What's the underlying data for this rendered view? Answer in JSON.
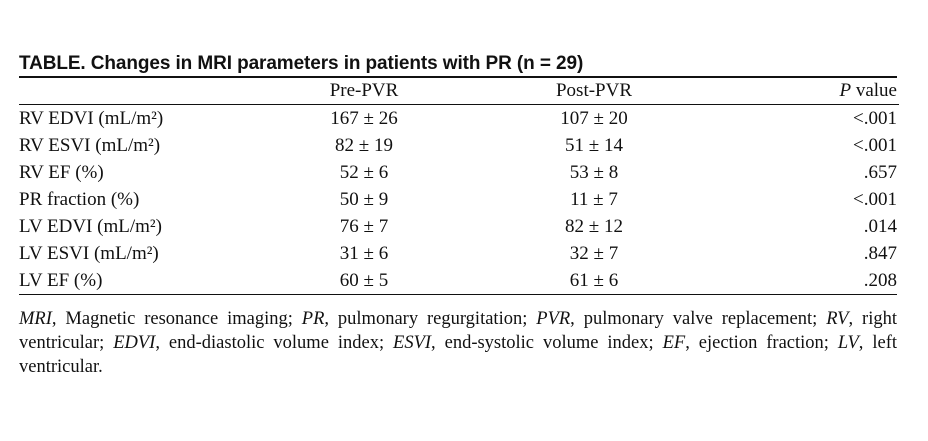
{
  "table": {
    "caption": "TABLE. Changes in MRI parameters in patients with PR (n = 29)",
    "headers": {
      "parameter": "",
      "pre": "Pre-PVR",
      "post": "Post-PVR",
      "p_italic": "P",
      "p_rest": " value"
    },
    "rows": [
      {
        "parameter": "RV EDVI (mL/m²)",
        "pre": "167 ± 26",
        "post": "107 ± 20",
        "p": "<.001"
      },
      {
        "parameter": "RV ESVI (mL/m²)",
        "pre": "82 ± 19",
        "post": "51 ± 14",
        "p": "<.001"
      },
      {
        "parameter": "RV EF (%)",
        "pre": "52 ± 6",
        "post": "53 ± 8",
        "p": ".657"
      },
      {
        "parameter": "PR fraction (%)",
        "pre": "50 ± 9",
        "post": "11 ± 7",
        "p": "<.001"
      },
      {
        "parameter": "LV EDVI (mL/m²)",
        "pre": "76 ± 7",
        "post": "82 ± 12",
        "p": ".014"
      },
      {
        "parameter": "LV ESVI (mL/m²)",
        "pre": "31 ± 6",
        "post": "32 ± 7",
        "p": ".847"
      },
      {
        "parameter": "LV EF (%)",
        "pre": "60 ± 5",
        "post": "61 ± 6",
        "p": ".208"
      }
    ]
  },
  "footnote": [
    {
      "abbr": "MRI",
      "def": ", Magnetic resonance imaging; "
    },
    {
      "abbr": "PR",
      "def": ", pulmonary regurgitation; "
    },
    {
      "abbr": "PVR",
      "def": ", pulmonary valve replacement; "
    },
    {
      "abbr": "RV",
      "def": ", right ventricular; "
    },
    {
      "abbr": "EDVI",
      "def": ", end-diastolic volume index; "
    },
    {
      "abbr": "ESVI",
      "def": ", end-systolic volume index; "
    },
    {
      "abbr": "EF",
      "def": ", ejection fraction; "
    },
    {
      "abbr": "LV",
      "def": ", left ventricular."
    }
  ]
}
